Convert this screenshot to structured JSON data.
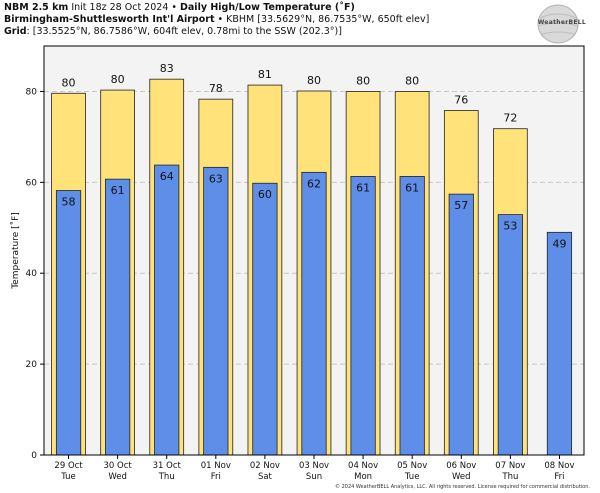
{
  "header": {
    "line1_bold_a": "NBM 2.5 km",
    "line1_plain": " Init 18z 28 Oct 2024 • ",
    "line1_bold_b": "Daily High/Low Temperature (˚F)",
    "line2_bold": "Birmingham-Shuttlesworth Int'l Airport",
    "line2_plain": " • KBHM [33.5629°N, 86.7535°W, 650ft elev]",
    "line3_bold": "Grid",
    "line3_plain": ": [33.5525°N, 86.7586°W, 604ft elev, 0.78mi to the SSW (202.3°)]"
  },
  "logo": {
    "text": "WeatherBELL",
    "icon": "globe-logo-icon"
  },
  "footer": {
    "copyright": "© 2024 WeatherBELL Analytics, LLC. All rights reserved. License required for commercial distribution."
  },
  "chart_data": {
    "type": "bar",
    "ylabel": "Temperature [˚F]",
    "ylim": [
      0,
      90
    ],
    "yticks": [
      0,
      20,
      40,
      60,
      80
    ],
    "grid": true,
    "categories": [
      {
        "date": "29 Oct",
        "day": "Tue"
      },
      {
        "date": "30 Oct",
        "day": "Wed"
      },
      {
        "date": "31 Oct",
        "day": "Thu"
      },
      {
        "date": "01 Nov",
        "day": "Fri"
      },
      {
        "date": "02 Nov",
        "day": "Sat"
      },
      {
        "date": "03 Nov",
        "day": "Sun"
      },
      {
        "date": "04 Nov",
        "day": "Mon"
      },
      {
        "date": "05 Nov",
        "day": "Tue"
      },
      {
        "date": "06 Nov",
        "day": "Wed"
      },
      {
        "date": "07 Nov",
        "day": "Thu"
      },
      {
        "date": "08 Nov",
        "day": "Fri"
      }
    ],
    "series": [
      {
        "key": "high",
        "color": "#ffe27a",
        "values": [
          79.6,
          80.3,
          82.7,
          78.3,
          81.4,
          80.1,
          80.0,
          80.0,
          75.8,
          71.8,
          null
        ],
        "labels": [
          "80",
          "80",
          "83",
          "78",
          "81",
          "80",
          "80",
          "80",
          "76",
          "72",
          ""
        ]
      },
      {
        "key": "low",
        "color": "#5f8ee8",
        "values": [
          58.2,
          60.7,
          63.8,
          63.3,
          59.8,
          62.2,
          61.3,
          61.3,
          57.4,
          52.9,
          49.0
        ],
        "labels": [
          "58",
          "61",
          "64",
          "63",
          "60",
          "62",
          "61",
          "61",
          "57",
          "53",
          "49"
        ]
      }
    ],
    "colors": {
      "plot_bg": "#f3f3f3",
      "grid": "#c8c8c8",
      "bar_edge": "#222222"
    }
  }
}
